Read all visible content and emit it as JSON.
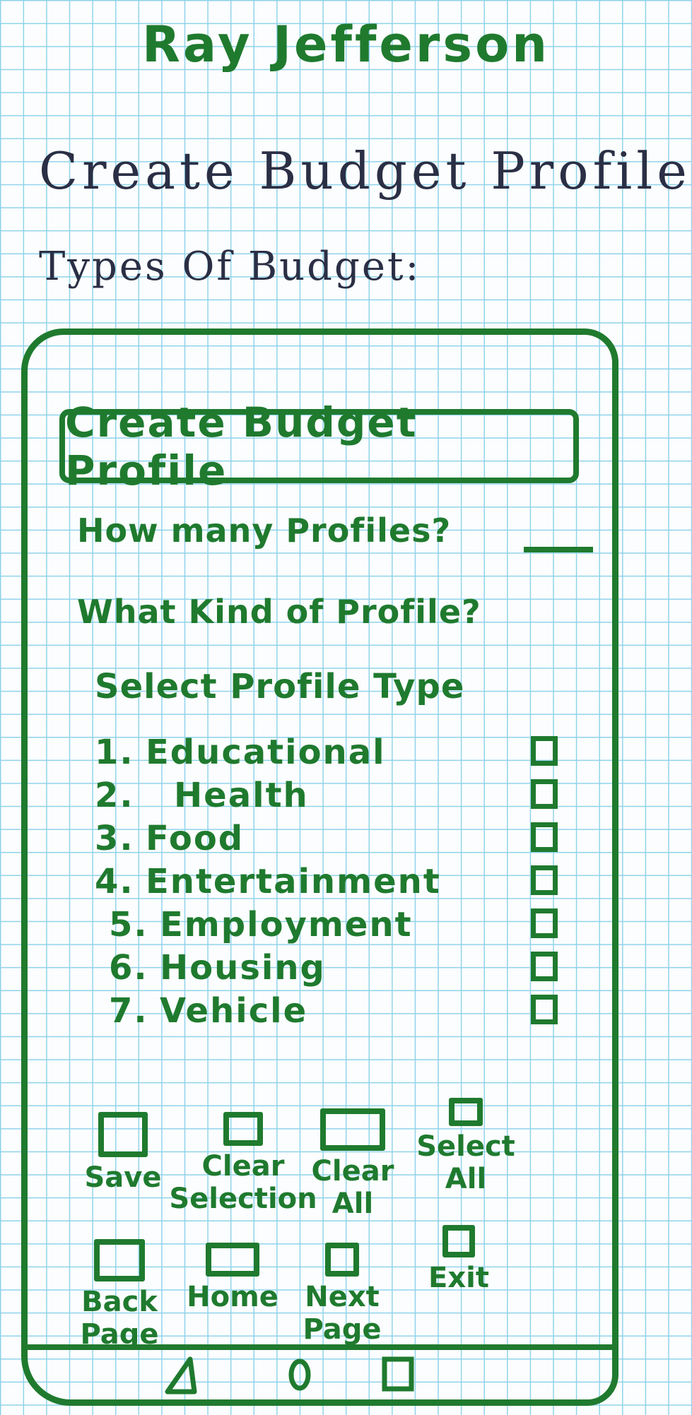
{
  "author": "Ray Jefferson",
  "page": {
    "heading": "Create Budget Profile",
    "subheading": "Types Of Budget:"
  },
  "app": {
    "title": "Create Budget Profile",
    "question_count": "How many Profiles?",
    "question_kind": "What Kind of Profile?",
    "select_prompt": "Select Profile Type",
    "profile_types": [
      {
        "number": "1.",
        "label": "Educational"
      },
      {
        "number": "2.",
        "label": "Health"
      },
      {
        "number": "3.",
        "label": "Food"
      },
      {
        "number": "4.",
        "label": "Entertainment"
      },
      {
        "number": "5.",
        "label": "Employment"
      },
      {
        "number": "6.",
        "label": "Housing"
      },
      {
        "number": "7.",
        "label": "Vehicle"
      }
    ],
    "actions_row1": {
      "save": "Save",
      "clear_selection": "Clear\nSelection",
      "clear_all": "Clear\nAll",
      "select_all": "Select\nAll"
    },
    "actions_row2": {
      "back_page": "Back\nPage",
      "home": "Home",
      "next_page": "Next\nPage",
      "exit": "Exit"
    },
    "nav": {
      "back_icon": "triangle-back-icon",
      "home_icon": "circle-home-icon",
      "recents_icon": "square-recents-icon"
    }
  },
  "colors": {
    "ink_green": "#1f7a2e",
    "ink_black": "#2a2f45",
    "grid_blue": "#8fd3ea"
  }
}
